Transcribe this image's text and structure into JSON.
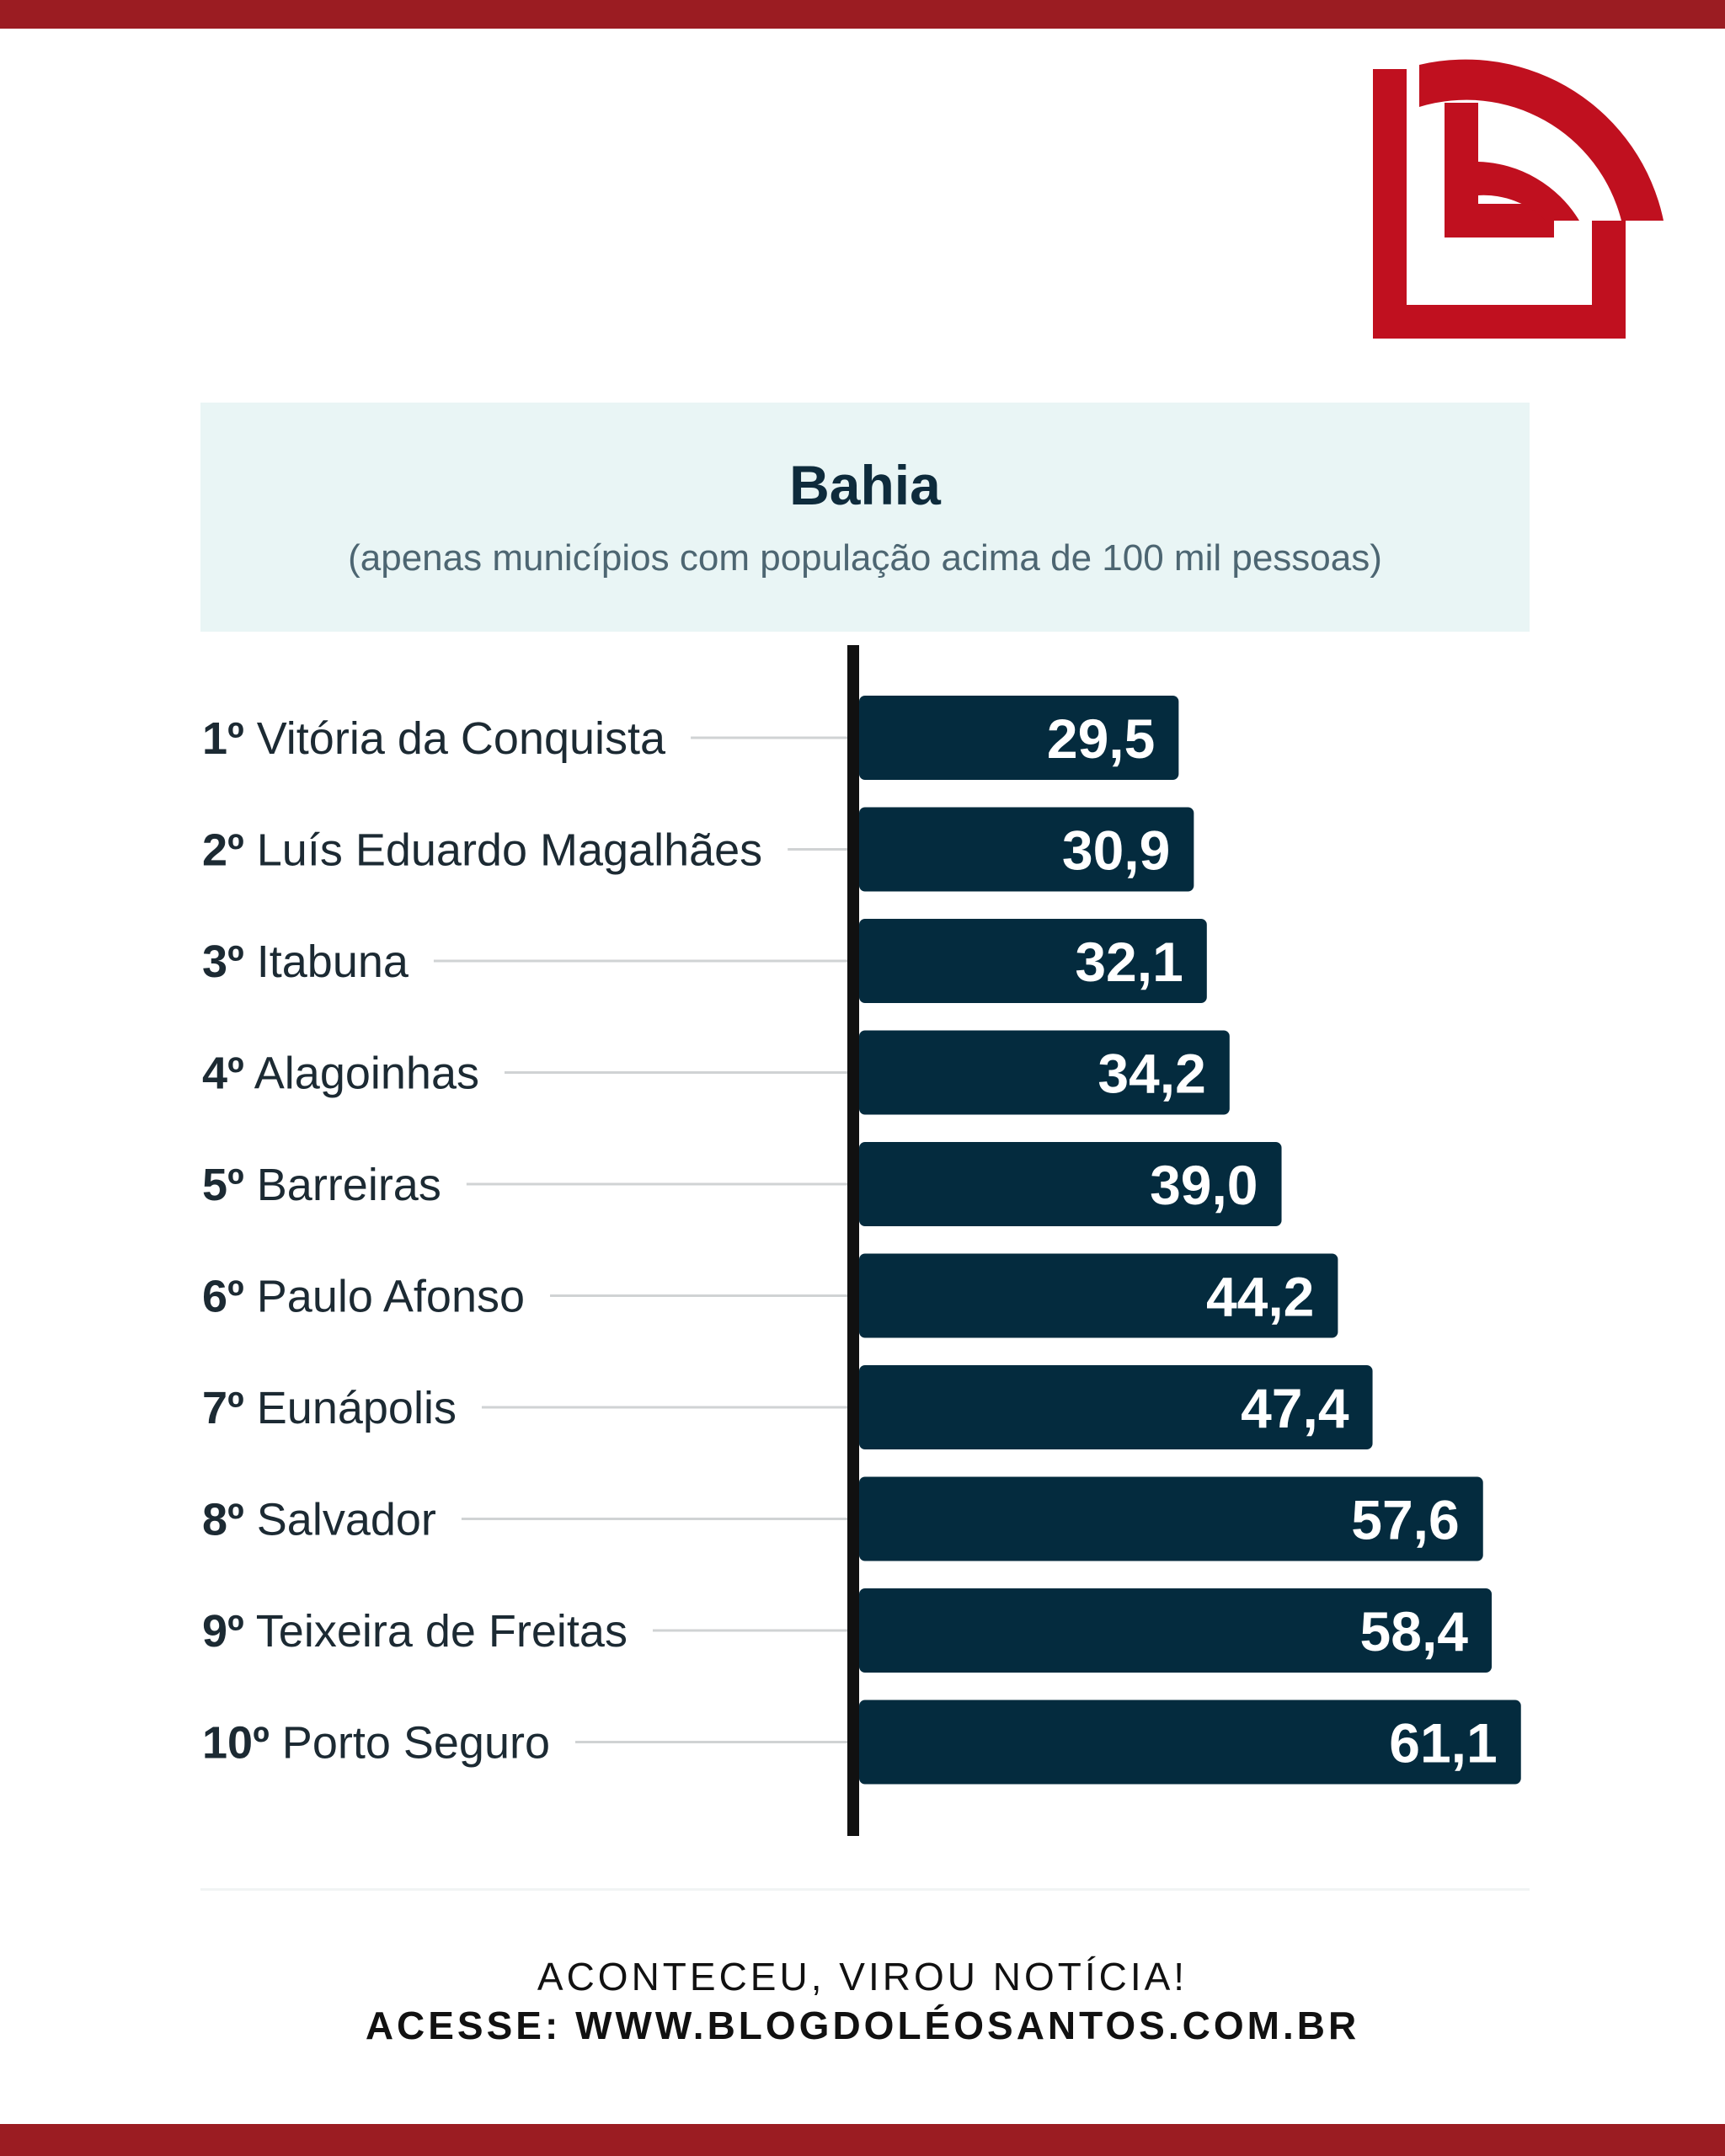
{
  "brand": {
    "primary_color": "#9b1c22",
    "logo_color": "#c0101f",
    "logo_icon": "blog-logo-icon"
  },
  "header": {
    "title": "Bahia",
    "subtitle": "(apenas municípios com população acima de 100 mil pessoas)"
  },
  "chart_data": {
    "type": "bar",
    "orientation": "horizontal",
    "title": "Bahia",
    "subtitle": "(apenas municípios com população acima de 100 mil pessoas)",
    "categories": [
      "Vitória da Conquista",
      "Luís Eduardo Magalhães",
      "Itabuna",
      "Alagoinhas",
      "Barreiras",
      "Paulo Afonso",
      "Eunápolis",
      "Salvador",
      "Teixeira de Freitas",
      "Porto Seguro"
    ],
    "ranks": [
      "1º",
      "2º",
      "3º",
      "4º",
      "5º",
      "6º",
      "7º",
      "8º",
      "9º",
      "10º"
    ],
    "values": [
      29.5,
      30.9,
      32.1,
      34.2,
      39.0,
      44.2,
      47.4,
      57.6,
      58.4,
      61.1
    ],
    "value_labels": [
      "29,5",
      "30,9",
      "32,1",
      "34,2",
      "39,0",
      "44,2",
      "47,4",
      "57,6",
      "58,4",
      "61,1"
    ],
    "xlabel": "",
    "ylabel": "",
    "bar_color": "#042b3e",
    "axis_color": "#111111",
    "leader_line_color": "#d0d3d4",
    "grid": false,
    "legend": "none"
  },
  "footer": {
    "tagline": "ACONTECEU, VIROU NOTÍCIA!",
    "site": "ACESSE: WWW.BLOGDOLÉOSANTOS.COM.BR"
  }
}
